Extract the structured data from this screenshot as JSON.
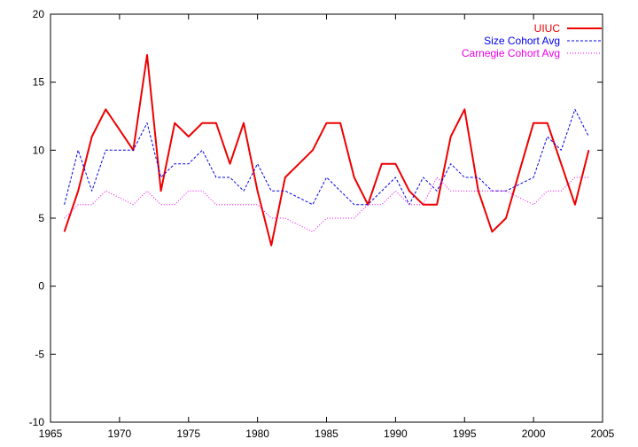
{
  "chart_data": {
    "type": "line",
    "title": "",
    "xlabel": "",
    "ylabel": "",
    "xlim": [
      1965,
      2005
    ],
    "ylim": [
      -10,
      20
    ],
    "xticks": [
      1965,
      1970,
      1975,
      1980,
      1985,
      1990,
      1995,
      2000,
      2005
    ],
    "yticks": [
      -10,
      -5,
      0,
      5,
      10,
      15,
      20
    ],
    "grid": false,
    "legend_position": "top-right",
    "x": [
      1966,
      1967,
      1968,
      1969,
      1970,
      1971,
      1972,
      1973,
      1974,
      1975,
      1976,
      1977,
      1978,
      1979,
      1980,
      1981,
      1982,
      1983,
      1984,
      1985,
      1986,
      1987,
      1988,
      1989,
      1990,
      1991,
      1992,
      1993,
      1994,
      1995,
      1996,
      1997,
      1998,
      1999,
      2000,
      2001,
      2002,
      2003,
      2004
    ],
    "series": [
      {
        "name": "UIUC",
        "color": "#ee0000",
        "style": "solid",
        "values": [
          4,
          7,
          11,
          13,
          11.5,
          10,
          17,
          7,
          12,
          11,
          12,
          12,
          9,
          12,
          7,
          3,
          8,
          9,
          10,
          12,
          12,
          8,
          6,
          9,
          9,
          7,
          6,
          6,
          11,
          13,
          7,
          4,
          5,
          8.5,
          12,
          12,
          9,
          6,
          10
        ]
      },
      {
        "name": "Size Cohort Avg",
        "color": "#0000ee",
        "style": "dashed",
        "values": [
          6,
          10,
          7,
          10,
          10,
          10,
          12,
          8,
          9,
          9,
          10,
          8,
          8,
          7,
          9,
          7,
          7,
          6.5,
          6,
          8,
          7,
          6,
          6,
          7,
          8,
          6,
          8,
          7,
          9,
          8,
          8,
          7,
          7,
          7.5,
          8,
          11,
          10,
          13,
          11
        ]
      },
      {
        "name": "Carnegie Cohort Avg",
        "color": "#ee00ee",
        "style": "dotted",
        "values": [
          5,
          6,
          6,
          7,
          6.5,
          6,
          7,
          6,
          6,
          7,
          7,
          6,
          6,
          6,
          6,
          5,
          5,
          4.5,
          4,
          5,
          5,
          5,
          6,
          6,
          7,
          6,
          6,
          8,
          7,
          7,
          7,
          7,
          7,
          6.5,
          6,
          7,
          7,
          8,
          8
        ]
      }
    ]
  }
}
